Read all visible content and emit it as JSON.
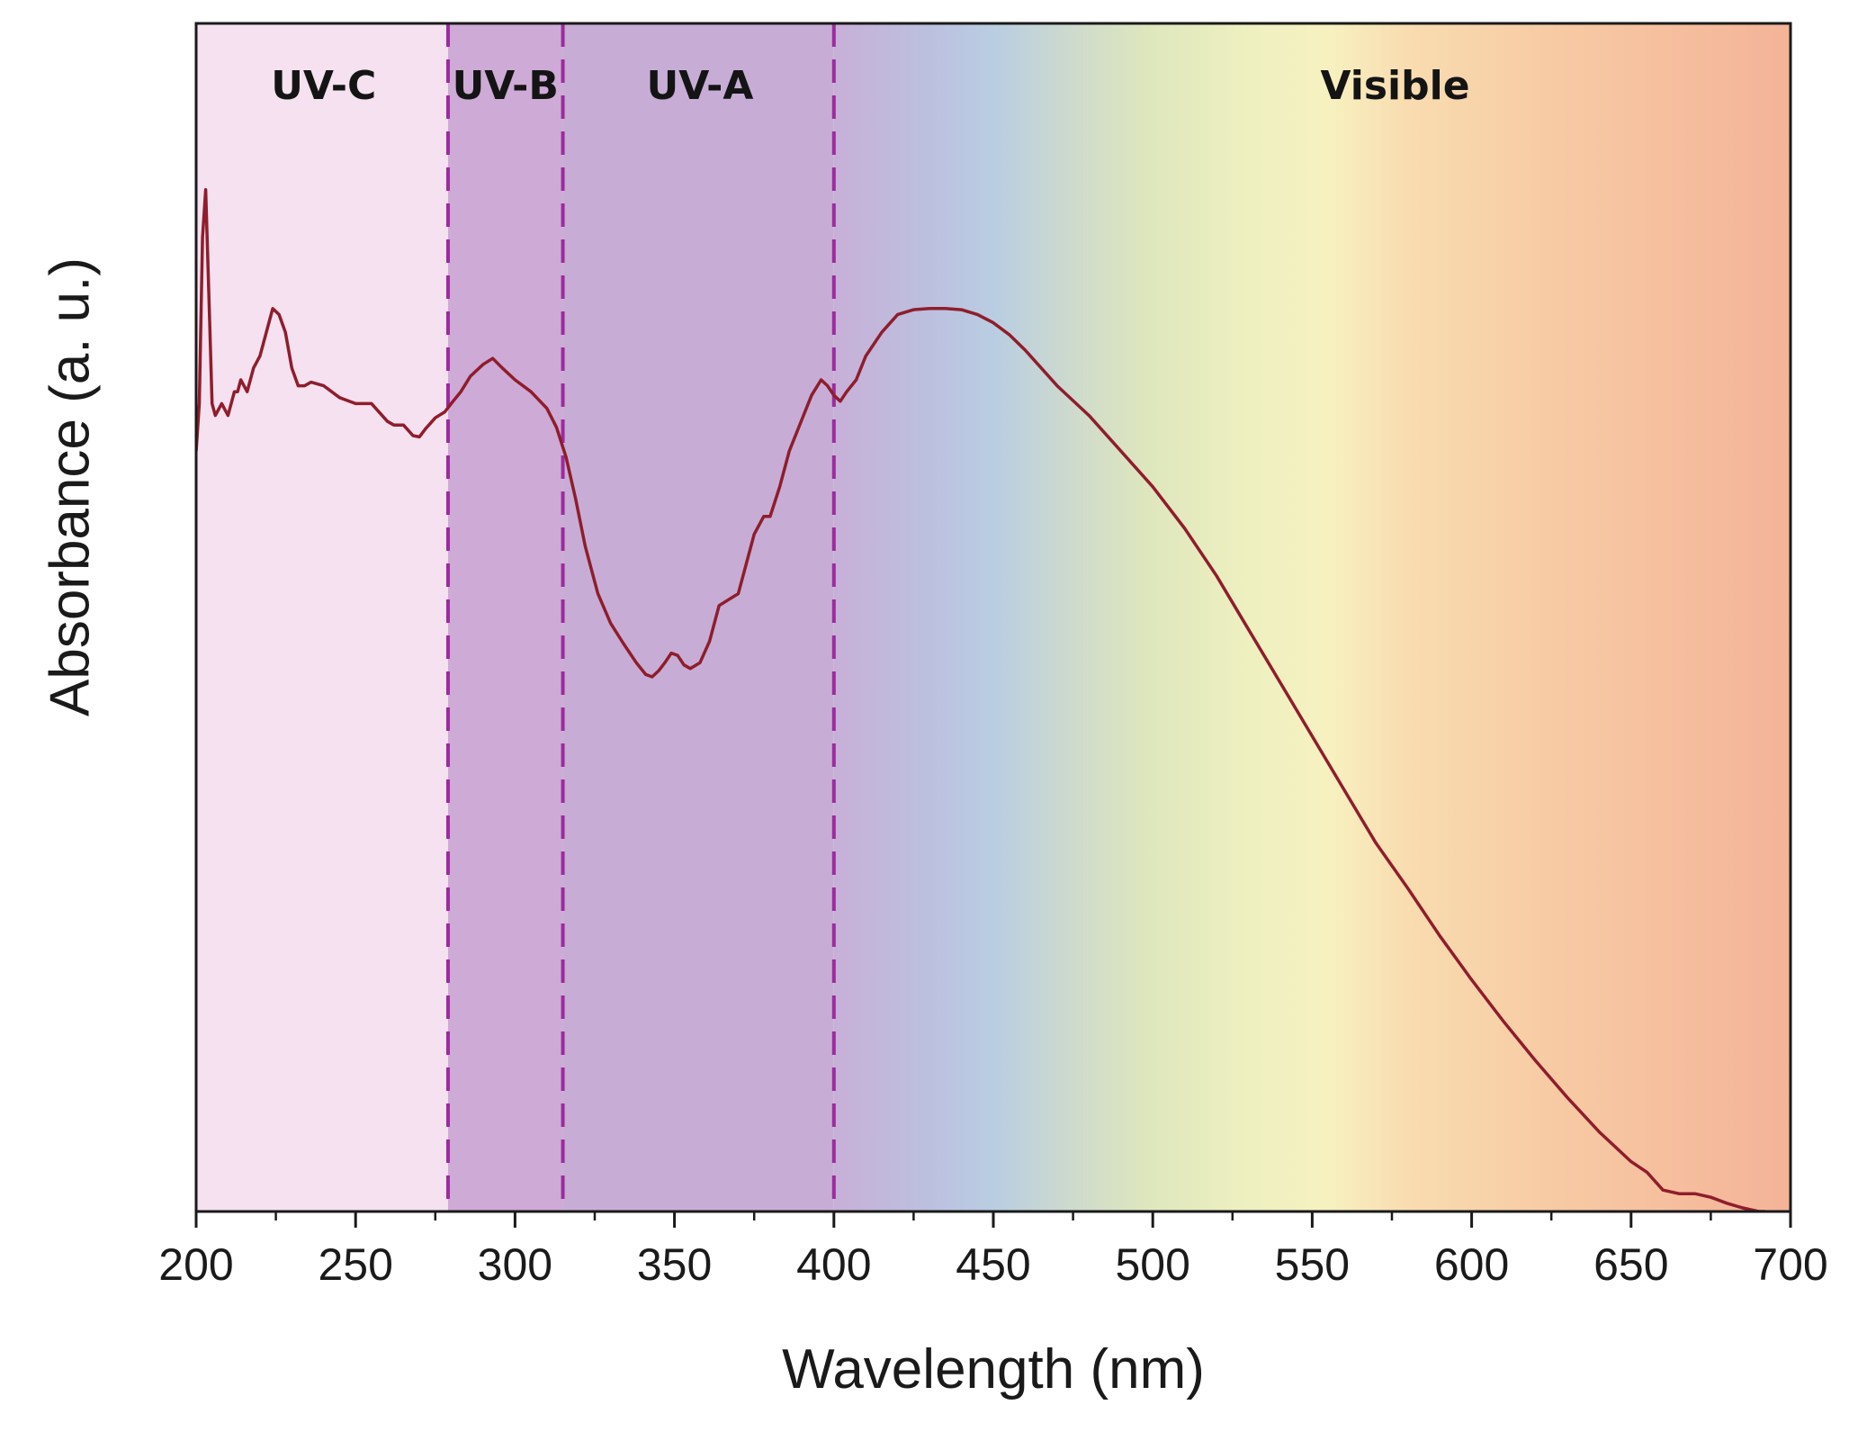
{
  "chart_data": {
    "type": "line",
    "title": "",
    "xlabel": "Wavelength (nm)",
    "ylabel": "Absorbance (a. u.)",
    "xlim": [
      200,
      700
    ],
    "ylim": [
      0,
      1
    ],
    "y_ticks_shown": false,
    "x_ticks": [
      200,
      250,
      300,
      350,
      400,
      450,
      500,
      550,
      600,
      650,
      700
    ],
    "x_tick_labels": [
      "200",
      "250",
      "300",
      "350",
      "400",
      "450",
      "500",
      "550",
      "600",
      "650",
      "700"
    ],
    "grid": false,
    "legend": "none",
    "regions": [
      {
        "name": "UV-C",
        "from": 200,
        "to": 279,
        "color": "#f5e1f0"
      },
      {
        "name": "UV-B",
        "from": 279,
        "to": 315,
        "color": "#ceaad6"
      },
      {
        "name": "UV-A",
        "from": 315,
        "to": 400,
        "color": "#c7add6"
      },
      {
        "name": "Visible",
        "from": 400,
        "to": 700,
        "color": "spectrum"
      }
    ],
    "boundaries": [
      279,
      315,
      400
    ],
    "boundary_color": "#9c2b9e",
    "visible_gradient": [
      {
        "x": 400,
        "color": "#c7b0d8"
      },
      {
        "x": 430,
        "color": "#bcc0df"
      },
      {
        "x": 450,
        "color": "#b9cde2"
      },
      {
        "x": 480,
        "color": "#d2ddc9"
      },
      {
        "x": 500,
        "color": "#dfe7bd"
      },
      {
        "x": 530,
        "color": "#eef0c0"
      },
      {
        "x": 555,
        "color": "#f7f1c0"
      },
      {
        "x": 580,
        "color": "#f9dcb0"
      },
      {
        "x": 630,
        "color": "#f7c9a3"
      },
      {
        "x": 700,
        "color": "#f4b398"
      }
    ],
    "series": [
      {
        "name": "Absorbance",
        "color": "#8f1d2c",
        "x": [
          200,
          201,
          202,
          203,
          204,
          205,
          206,
          208,
          210,
          212,
          213,
          214,
          216,
          218,
          220,
          222,
          224,
          226,
          228,
          230,
          232,
          234,
          236,
          240,
          245,
          250,
          255,
          260,
          262,
          265,
          268,
          270,
          272,
          275,
          278,
          280,
          283,
          286,
          290,
          293,
          296,
          300,
          305,
          310,
          313,
          316,
          319,
          322,
          326,
          330,
          334,
          338,
          341,
          343,
          345,
          347,
          349,
          351,
          353,
          355,
          358,
          361,
          364,
          367,
          370,
          372,
          375,
          378,
          380,
          383,
          386,
          390,
          393,
          396,
          398,
          400,
          402,
          404,
          407,
          410,
          415,
          420,
          425,
          430,
          435,
          440,
          445,
          450,
          455,
          460,
          470,
          480,
          490,
          500,
          510,
          520,
          530,
          540,
          550,
          560,
          570,
          580,
          590,
          600,
          610,
          620,
          630,
          640,
          650,
          655,
          660,
          665,
          670,
          675,
          680,
          685,
          690,
          692
        ],
        "y": [
          0.64,
          0.68,
          0.82,
          0.86,
          0.77,
          0.68,
          0.67,
          0.68,
          0.67,
          0.69,
          0.69,
          0.7,
          0.69,
          0.71,
          0.72,
          0.74,
          0.76,
          0.755,
          0.74,
          0.71,
          0.695,
          0.695,
          0.698,
          0.695,
          0.685,
          0.68,
          0.68,
          0.665,
          0.662,
          0.662,
          0.653,
          0.652,
          0.659,
          0.668,
          0.673,
          0.68,
          0.69,
          0.703,
          0.713,
          0.718,
          0.71,
          0.7,
          0.69,
          0.676,
          0.66,
          0.635,
          0.6,
          0.56,
          0.52,
          0.495,
          0.478,
          0.462,
          0.452,
          0.45,
          0.455,
          0.462,
          0.47,
          0.468,
          0.46,
          0.457,
          0.462,
          0.48,
          0.51,
          0.515,
          0.52,
          0.54,
          0.57,
          0.585,
          0.585,
          0.61,
          0.64,
          0.667,
          0.687,
          0.7,
          0.695,
          0.687,
          0.682,
          0.69,
          0.7,
          0.72,
          0.74,
          0.755,
          0.759,
          0.76,
          0.76,
          0.759,
          0.755,
          0.748,
          0.738,
          0.725,
          0.695,
          0.67,
          0.64,
          0.61,
          0.575,
          0.535,
          0.49,
          0.445,
          0.4,
          0.355,
          0.31,
          0.272,
          0.232,
          0.195,
          0.16,
          0.127,
          0.096,
          0.067,
          0.042,
          0.033,
          0.018,
          0.015,
          0.015,
          0.012,
          0.007,
          0.003,
          0.0,
          0.0
        ]
      }
    ]
  }
}
